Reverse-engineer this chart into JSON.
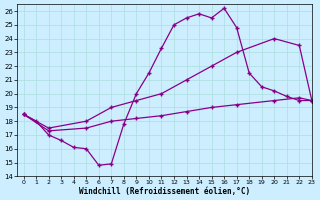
{
  "xlabel": "Windchill (Refroidissement éolien,°C)",
  "bg_color": "#cceeff",
  "line_color": "#880088",
  "xlim": [
    -0.5,
    23
  ],
  "ylim": [
    14,
    26.5
  ],
  "yticks": [
    14,
    15,
    16,
    17,
    18,
    19,
    20,
    21,
    22,
    23,
    24,
    25,
    26
  ],
  "xticks": [
    0,
    1,
    2,
    3,
    4,
    5,
    6,
    7,
    8,
    9,
    10,
    11,
    12,
    13,
    14,
    15,
    16,
    17,
    18,
    19,
    20,
    21,
    22,
    23
  ],
  "line1_x": [
    0,
    1,
    2,
    3,
    4,
    5,
    6,
    7,
    8,
    9,
    10,
    11,
    12,
    13,
    14,
    15,
    16,
    17,
    18,
    19,
    20,
    21,
    22,
    23
  ],
  "line1_y": [
    18.5,
    18.0,
    17.0,
    16.6,
    16.1,
    16.0,
    14.8,
    14.9,
    17.8,
    20.0,
    21.5,
    23.3,
    25.0,
    25.5,
    25.8,
    25.5,
    26.2,
    24.8,
    21.5,
    20.5,
    20.2,
    19.8,
    19.5,
    19.5
  ],
  "line2_x": [
    0,
    2,
    5,
    7,
    9,
    11,
    13,
    15,
    17,
    20,
    22,
    23
  ],
  "line2_y": [
    18.5,
    17.5,
    18.0,
    19.0,
    19.5,
    20.0,
    21.0,
    22.0,
    23.0,
    24.0,
    23.5,
    19.5
  ],
  "line3_x": [
    0,
    2,
    5,
    7,
    9,
    11,
    13,
    15,
    17,
    20,
    22,
    23
  ],
  "line3_y": [
    18.5,
    17.3,
    17.5,
    18.0,
    18.2,
    18.4,
    18.7,
    19.0,
    19.2,
    19.5,
    19.7,
    19.5
  ]
}
